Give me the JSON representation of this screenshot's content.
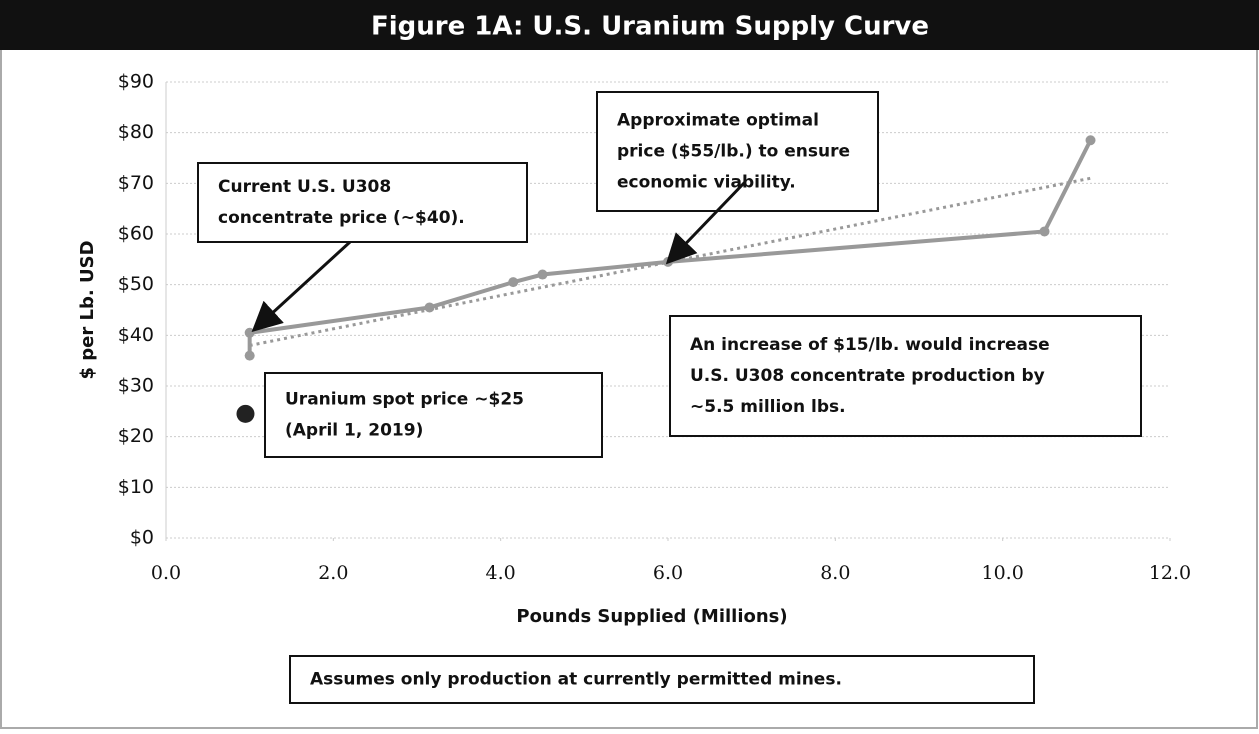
{
  "chart_data": {
    "type": "line",
    "title": "Figure 1A: U.S. Uranium Supply Curve",
    "x_label": "Pounds Supplied (Millions)",
    "y_label": "$ per Lb. USD",
    "xlim": [
      0,
      12
    ],
    "ylim": [
      0,
      90
    ],
    "xticks": [
      {
        "value": 0,
        "label": "0.0"
      },
      {
        "value": 2,
        "label": "2.0"
      },
      {
        "value": 4,
        "label": "4.0"
      },
      {
        "value": 6,
        "label": "6.0"
      },
      {
        "value": 8,
        "label": "8.0"
      },
      {
        "value": 10,
        "label": "10.0"
      },
      {
        "value": 12,
        "label": "12.0"
      }
    ],
    "yticks": [
      {
        "value": 0,
        "label": "$0"
      },
      {
        "value": 10,
        "label": "$10"
      },
      {
        "value": 20,
        "label": "$20"
      },
      {
        "value": 30,
        "label": "$30"
      },
      {
        "value": 40,
        "label": "$40"
      },
      {
        "value": 50,
        "label": "$50"
      },
      {
        "value": 60,
        "label": "$60"
      },
      {
        "value": 70,
        "label": "$70"
      },
      {
        "value": 80,
        "label": "$80"
      },
      {
        "value": 90,
        "label": "$90"
      }
    ],
    "grid": true,
    "series": [
      {
        "color": "#999999",
        "style": "solid",
        "markers": true,
        "x": [
          1.0,
          1.0,
          3.15,
          4.15,
          4.5,
          6.0,
          10.5,
          11.05
        ],
        "values": [
          36,
          40.5,
          45.5,
          50.5,
          52,
          54.5,
          60.5,
          78.5
        ]
      },
      {
        "color": "#999999",
        "style": "dotted",
        "markers": false,
        "x": [
          1.0,
          11.05
        ],
        "values": [
          38,
          71
        ]
      },
      {
        "color": "#222222",
        "style": "point",
        "markers": true,
        "x": [
          0.95
        ],
        "values": [
          24.5
        ]
      }
    ],
    "annotations": [
      {
        "lines": [
          "Current U.S. U308",
          "concentrate price (~$40)."
        ]
      },
      {
        "lines": [
          "Approximate optimal",
          "price ($55/lb.) to ensure",
          "economic viability."
        ]
      },
      {
        "lines": [
          "An increase of $15/lb. would increase",
          "U.S. U308 concentrate production by",
          "~5.5 million lbs."
        ]
      },
      {
        "lines": [
          "Uranium spot price ~$25",
          "(April 1, 2019)"
        ]
      },
      {
        "lines": [
          "Assumes only production at currently permitted mines."
        ]
      }
    ]
  }
}
